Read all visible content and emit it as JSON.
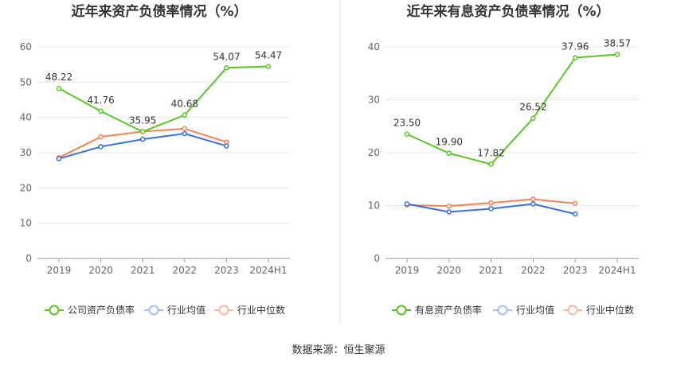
{
  "source_label": "数据来源：恒生聚源",
  "colors": {
    "company": "#5cc42b",
    "average": "#3a6fd8",
    "median": "#f08458"
  },
  "chart_data": [
    {
      "type": "line",
      "title": "近年来资产负债率情况（%）",
      "categories": [
        "2019",
        "2020",
        "2021",
        "2022",
        "2023",
        "2024H1"
      ],
      "ylim": [
        0,
        60
      ],
      "yticks": [
        0,
        10,
        20,
        30,
        40,
        50,
        60
      ],
      "grid": true,
      "legend_position": "bottom",
      "series": [
        {
          "name": "公司资产负债率",
          "color": "#5cc42b",
          "values": [
            48.22,
            41.76,
            35.95,
            40.68,
            54.07,
            54.47
          ],
          "labels": [
            "48.22",
            "41.76",
            "35.95",
            "40.68",
            "54.07",
            "54.47"
          ]
        },
        {
          "name": "行业均值",
          "color": "#3a6fd8",
          "values": [
            28.3,
            31.7,
            33.8,
            35.4,
            31.9,
            null
          ]
        },
        {
          "name": "行业中位数",
          "color": "#f08458",
          "values": [
            28.6,
            34.5,
            36.0,
            36.8,
            33.0,
            null
          ]
        }
      ]
    },
    {
      "type": "line",
      "title": "近年来有息资产负债率情况（%）",
      "categories": [
        "2019",
        "2020",
        "2021",
        "2022",
        "2023",
        "2024H1"
      ],
      "ylim": [
        0,
        40
      ],
      "yticks": [
        0,
        10,
        20,
        30,
        40
      ],
      "grid": true,
      "legend_position": "bottom",
      "series": [
        {
          "name": "有息资产负债率",
          "color": "#5cc42b",
          "values": [
            23.5,
            19.9,
            17.82,
            26.52,
            37.96,
            38.57
          ],
          "labels": [
            "23.50",
            "19.90",
            "17.82",
            "26.52",
            "37.96",
            "38.57"
          ]
        },
        {
          "name": "行业均值",
          "color": "#3a6fd8",
          "values": [
            10.3,
            8.8,
            9.4,
            10.3,
            8.4,
            null
          ]
        },
        {
          "name": "行业中位数",
          "color": "#f08458",
          "values": [
            10.1,
            9.9,
            10.5,
            11.2,
            10.4,
            null
          ]
        }
      ]
    }
  ]
}
